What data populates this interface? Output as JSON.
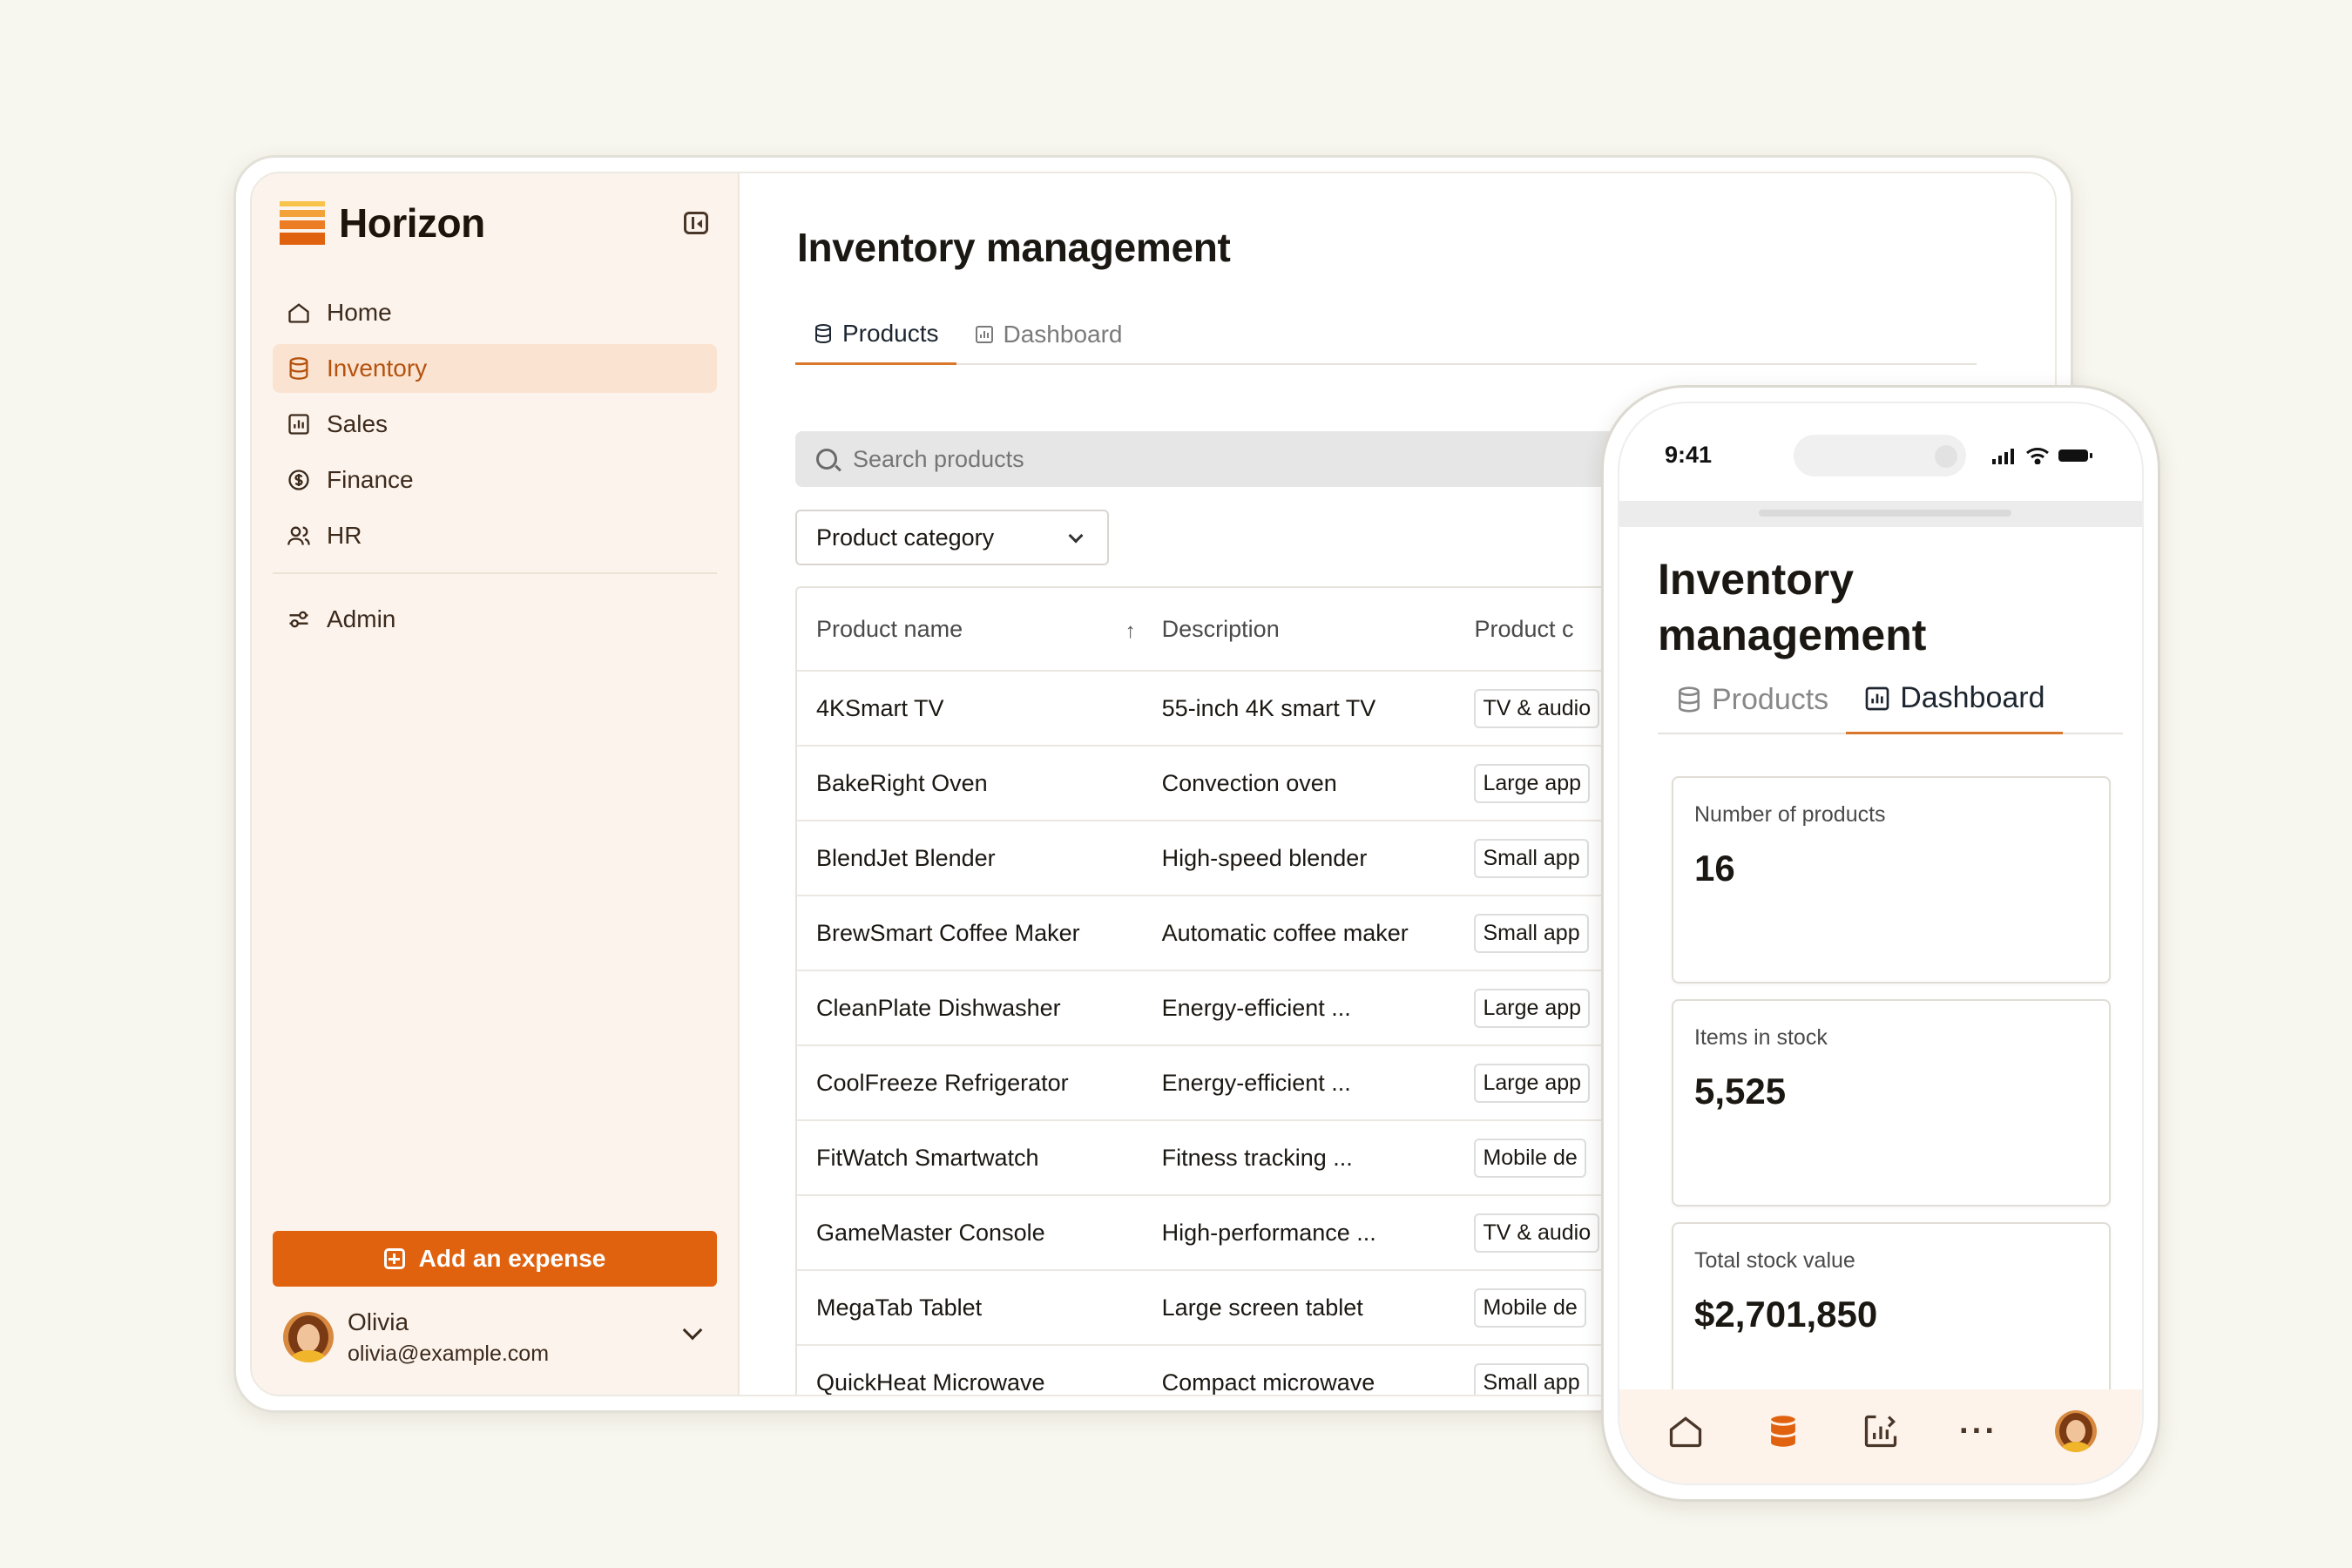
{
  "colors": {
    "accent": "#e0620f",
    "sidebar_bg": "#fcf4ec",
    "active_nav_bg": "#fbe3d2",
    "tab_underline": "#d9772a"
  },
  "brand": {
    "name": "Horizon"
  },
  "sidebar": {
    "items": [
      {
        "label": "Home",
        "icon": "home-icon"
      },
      {
        "label": "Inventory",
        "icon": "database-icon",
        "active": true
      },
      {
        "label": "Sales",
        "icon": "chart-icon"
      },
      {
        "label": "Finance",
        "icon": "dollar-icon"
      },
      {
        "label": "HR",
        "icon": "users-icon"
      }
    ],
    "admin": {
      "label": "Admin",
      "icon": "sliders-icon"
    },
    "add_expense": "Add an expense",
    "user": {
      "name": "Olivia",
      "email": "olivia@example.com"
    }
  },
  "main": {
    "title": "Inventory management",
    "tabs": [
      {
        "label": "Products",
        "icon": "database-icon",
        "active": true
      },
      {
        "label": "Dashboard",
        "icon": "chart-icon"
      }
    ],
    "search_placeholder": "Search products",
    "filter_label": "Product category",
    "table": {
      "columns": [
        "Product name",
        "Description",
        "Product c"
      ],
      "rows": [
        [
          "4KSmart TV",
          "55-inch 4K smart TV",
          "TV & audio"
        ],
        [
          "BakeRight Oven",
          "Convection oven",
          "Large app"
        ],
        [
          "BlendJet Blender",
          "High-speed blender",
          "Small app"
        ],
        [
          "BrewSmart Coffee Maker",
          "Automatic coffee maker",
          "Small app"
        ],
        [
          "CleanPlate Dishwasher",
          "Energy-efficient ...",
          "Large app"
        ],
        [
          "CoolFreeze Refrigerator",
          "Energy-efficient ...",
          "Large app"
        ],
        [
          "FitWatch Smartwatch",
          "Fitness tracking ...",
          "Mobile de"
        ],
        [
          "GameMaster Console",
          "High-performance ...",
          "TV & audio"
        ],
        [
          "MegaTab Tablet",
          "Large screen tablet",
          "Mobile de"
        ],
        [
          "QuickHeat Microwave",
          "Compact microwave",
          "Small app"
        ]
      ]
    }
  },
  "phone": {
    "time": "9:41",
    "title": "Inventory management",
    "tabs": [
      {
        "label": "Products",
        "icon": "database-icon"
      },
      {
        "label": "Dashboard",
        "icon": "chart-icon",
        "active": true
      }
    ],
    "cards": [
      {
        "label": "Number of products",
        "value": "16"
      },
      {
        "label": "Items in stock",
        "value": "5,525"
      },
      {
        "label": "Total stock value",
        "value": "$2,701,850"
      }
    ],
    "nav": [
      "home-icon",
      "database-icon",
      "chart-icon",
      "more-icon",
      "avatar"
    ]
  }
}
